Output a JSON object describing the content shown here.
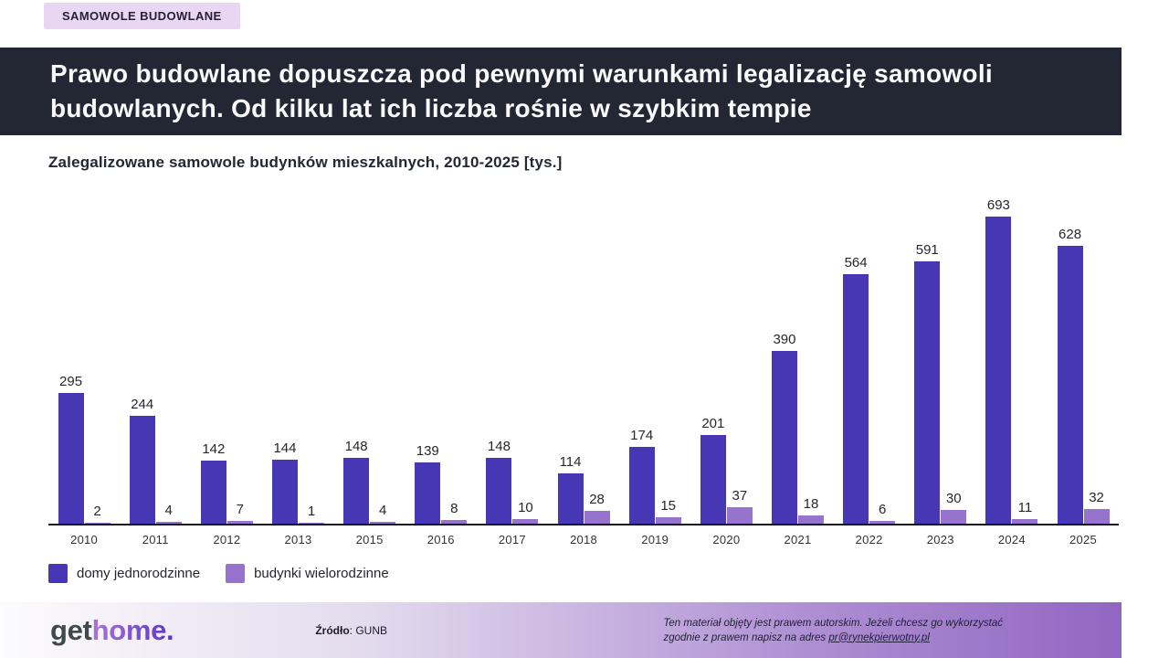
{
  "badge": {
    "label": "SAMOWOLE BUDOWLANE"
  },
  "header": {
    "title": "Prawo budowlane dopuszcza pod pewnymi warunkami legalizację samowoli budowlanych. Od kilku lat ich liczba rośnie w szybkim tempie"
  },
  "chart_data": {
    "type": "bar",
    "title": "Zalegalizowane samowole budynków mieszkalnych, 2010-2025 [tys.]",
    "categories": [
      "2010",
      "2011",
      "2012",
      "2013",
      "2015",
      "2016",
      "2017",
      "2018",
      "2019",
      "2020",
      "2021",
      "2022",
      "2023",
      "2024",
      "2025"
    ],
    "series": [
      {
        "name": "domy jednorodzinne",
        "color": "#4837b5",
        "values": [
          295,
          244,
          142,
          144,
          148,
          139,
          148,
          114,
          174,
          201,
          390,
          564,
          591,
          693,
          628
        ]
      },
      {
        "name": "budynki wielorodzinne",
        "color": "#9673cc",
        "values": [
          2,
          4,
          7,
          1,
          4,
          8,
          10,
          28,
          15,
          37,
          18,
          6,
          30,
          11,
          32
        ]
      }
    ],
    "xlabel": "",
    "ylabel": "",
    "ylim": [
      0,
      700
    ],
    "grid": false,
    "legend_position": "bottom-left",
    "value_labels": true
  },
  "footer": {
    "logo_part1": "get",
    "logo_part2": "home.",
    "source_label": "Źródło",
    "source_value": ": GUNB",
    "copyright_line1": "Ten materiał objęty jest prawem autorskim. Jeżeli chcesz go wykorzystać",
    "copyright_line2_prefix": "zgodnie z prawem napisz na adres ",
    "copyright_link": "pr@rynekpierwotny.pl"
  },
  "colors": {
    "header_bg": "#232734",
    "badge_bg": "#e9d6f2",
    "bar_primary": "#4837b5",
    "bar_secondary": "#9673cc",
    "footer_gradient_end": "#9166c2"
  }
}
